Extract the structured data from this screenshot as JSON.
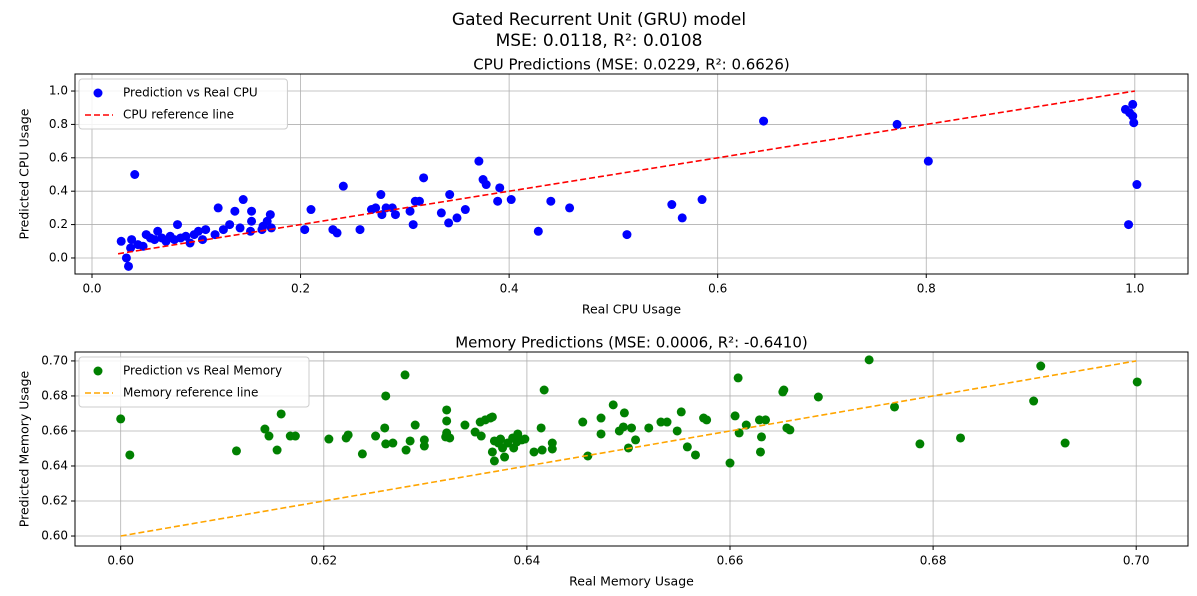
{
  "title": "Gated Recurrent Unit (GRU) model",
  "subtitle": "MSE: 0.0118, R²: 0.0108",
  "chart_data": [
    {
      "type": "scatter",
      "title": "CPU Predictions (MSE: 0.0229, R²: 0.6626)",
      "xlabel": "Real CPU Usage",
      "ylabel": "Predicted CPU Usage",
      "grid": true,
      "legend": "upper left",
      "xlim": [
        -0.0163,
        1.051
      ],
      "ylim": [
        -0.096,
        1.102
      ],
      "xticks": [
        {
          "value": 0,
          "label": "0.0"
        },
        0.2,
        0.4,
        0.6,
        0.8,
        {
          "value": 1,
          "label": "1.0"
        }
      ],
      "yticks": [
        {
          "value": 0,
          "label": "0.0"
        },
        0.2,
        0.4,
        0.6,
        0.8,
        {
          "value": 1,
          "label": "1.0"
        }
      ],
      "series": [
        {
          "name": "Prediction vs Real CPU",
          "color": "#0000ff",
          "marker": "circle",
          "x": [
            0.028,
            0.033,
            0.035,
            0.037,
            0.038,
            0.041,
            0.044,
            0.049,
            0.052,
            0.056,
            0.06,
            0.063,
            0.067,
            0.071,
            0.075,
            0.079,
            0.082,
            0.085,
            0.09,
            0.094,
            0.098,
            0.102,
            0.106,
            0.109,
            0.118,
            0.121,
            0.126,
            0.132,
            0.137,
            0.142,
            0.145,
            0.152,
            0.153,
            0.153,
            0.163,
            0.164,
            0.168,
            0.171,
            0.172,
            0.204,
            0.21,
            0.231,
            0.235,
            0.241,
            0.257,
            0.268,
            0.272,
            0.277,
            0.278,
            0.282,
            0.288,
            0.291,
            0.305,
            0.308,
            0.31,
            0.314,
            0.318,
            0.335,
            0.342,
            0.343,
            0.35,
            0.358,
            0.371,
            0.375,
            0.378,
            0.389,
            0.391,
            0.402,
            0.428,
            0.44,
            0.458,
            0.513,
            0.556,
            0.566,
            0.585,
            0.644,
            0.772,
            0.802,
            0.991,
            0.994,
            0.995,
            0.998,
            0.998,
            0.999,
            1.002
          ],
          "y": [
            0.1,
            0.0,
            -0.05,
            0.06,
            0.11,
            0.5,
            0.08,
            0.07,
            0.14,
            0.12,
            0.11,
            0.16,
            0.12,
            0.1,
            0.13,
            0.11,
            0.2,
            0.12,
            0.13,
            0.09,
            0.14,
            0.16,
            0.11,
            0.17,
            0.14,
            0.3,
            0.17,
            0.2,
            0.28,
            0.18,
            0.35,
            0.16,
            0.22,
            0.28,
            0.17,
            0.19,
            0.22,
            0.26,
            0.18,
            0.17,
            0.29,
            0.17,
            0.15,
            0.43,
            0.17,
            0.29,
            0.3,
            0.38,
            0.26,
            0.3,
            0.3,
            0.26,
            0.28,
            0.2,
            0.34,
            0.34,
            0.48,
            0.27,
            0.21,
            0.38,
            0.24,
            0.29,
            0.58,
            0.47,
            0.44,
            0.34,
            0.42,
            0.35,
            0.16,
            0.34,
            0.3,
            0.14,
            0.32,
            0.24,
            0.35,
            0.82,
            0.8,
            0.58,
            0.89,
            0.2,
            0.87,
            0.92,
            0.85,
            0.81,
            0.44
          ]
        },
        {
          "name": "CPU reference line",
          "color": "#ff0000",
          "marker": "dashed",
          "x": [
            0.025,
            1.0
          ],
          "y": [
            0.025,
            1.0
          ]
        }
      ]
    },
    {
      "type": "scatter",
      "title": "Memory Predictions (MSE: 0.0006, R²: -0.6410)",
      "xlabel": "Real Memory Usage",
      "ylabel": "Predicted Memory Usage",
      "grid": true,
      "legend": "upper left",
      "xlim": [
        0.5955,
        0.7051
      ],
      "ylim": [
        0.5943,
        0.7051
      ],
      "xticks": [
        {
          "value": 0.6,
          "label": "0.60"
        },
        0.62,
        0.64,
        0.66,
        0.68,
        {
          "value": 0.7,
          "label": "0.70"
        }
      ],
      "yticks": [
        {
          "value": 0.6,
          "label": "0.60"
        },
        0.62,
        0.64,
        0.66,
        0.68,
        {
          "value": 0.7,
          "label": "0.70"
        }
      ],
      "series": [
        {
          "name": "Prediction vs Real Memory",
          "color": "#008000",
          "marker": "circle",
          "x": [
            0.6,
            0.6009,
            0.6114,
            0.6142,
            0.6146,
            0.6154,
            0.6158,
            0.6167,
            0.6172,
            0.6205,
            0.6222,
            0.6224,
            0.6238,
            0.6251,
            0.6261,
            0.626,
            0.6261,
            0.6268,
            0.628,
            0.6281,
            0.6285,
            0.629,
            0.6299,
            0.6299,
            0.632,
            0.6321,
            0.6321,
            0.6321,
            0.6324,
            0.6339,
            0.6349,
            0.6354,
            0.6355,
            0.6359,
            0.6364,
            0.6366,
            0.6366,
            0.6368,
            0.6368,
            0.6372,
            0.6374,
            0.6376,
            0.6378,
            0.6381,
            0.6386,
            0.6387,
            0.639,
            0.6391,
            0.6395,
            0.6398,
            0.6407,
            0.6414,
            0.6415,
            0.6417,
            0.6425,
            0.6425,
            0.6455,
            0.646,
            0.6473,
            0.6473,
            0.6485,
            0.6491,
            0.6495,
            0.6496,
            0.65,
            0.6503,
            0.6507,
            0.652,
            0.6532,
            0.6538,
            0.6548,
            0.6552,
            0.6558,
            0.6566,
            0.6574,
            0.6577,
            0.66,
            0.6605,
            0.6608,
            0.6609,
            0.6616,
            0.6629,
            0.663,
            0.6631,
            0.6635,
            0.6652,
            0.6653,
            0.6656,
            0.6659,
            0.6687,
            0.6737,
            0.6762,
            0.6787,
            0.6827,
            0.6899,
            0.6906,
            0.693,
            0.7001
          ],
          "y": [
            0.6669,
            0.6463,
            0.6486,
            0.6611,
            0.6571,
            0.6491,
            0.6697,
            0.6571,
            0.6571,
            0.6554,
            0.656,
            0.6577,
            0.6469,
            0.6571,
            0.68,
            0.6617,
            0.6526,
            0.6531,
            0.692,
            0.6491,
            0.6543,
            0.6634,
            0.6549,
            0.6514,
            0.6566,
            0.672,
            0.6657,
            0.6589,
            0.656,
            0.6634,
            0.6594,
            0.6651,
            0.6571,
            0.6663,
            0.6674,
            0.668,
            0.648,
            0.6429,
            0.6543,
            0.6531,
            0.6554,
            0.6503,
            0.6451,
            0.6531,
            0.656,
            0.6503,
            0.6537,
            0.6583,
            0.6549,
            0.6554,
            0.648,
            0.6617,
            0.6491,
            0.6834,
            0.6497,
            0.6531,
            0.6651,
            0.6457,
            0.6674,
            0.6583,
            0.6749,
            0.66,
            0.6623,
            0.6703,
            0.6503,
            0.6617,
            0.6549,
            0.6617,
            0.6651,
            0.6651,
            0.66,
            0.6709,
            0.6509,
            0.6463,
            0.6674,
            0.6663,
            0.6417,
            0.6686,
            0.6903,
            0.6589,
            0.6634,
            0.6663,
            0.648,
            0.6566,
            0.6663,
            0.6823,
            0.6834,
            0.6617,
            0.6606,
            0.6794,
            0.7006,
            0.6737,
            0.6526,
            0.656,
            0.6771,
            0.6971,
            0.6531,
            0.688
          ]
        },
        {
          "name": "Memory reference line",
          "color": "#ffa500",
          "marker": "dashed",
          "x": [
            0.6,
            0.7
          ],
          "y": [
            0.6,
            0.7
          ]
        }
      ]
    }
  ]
}
